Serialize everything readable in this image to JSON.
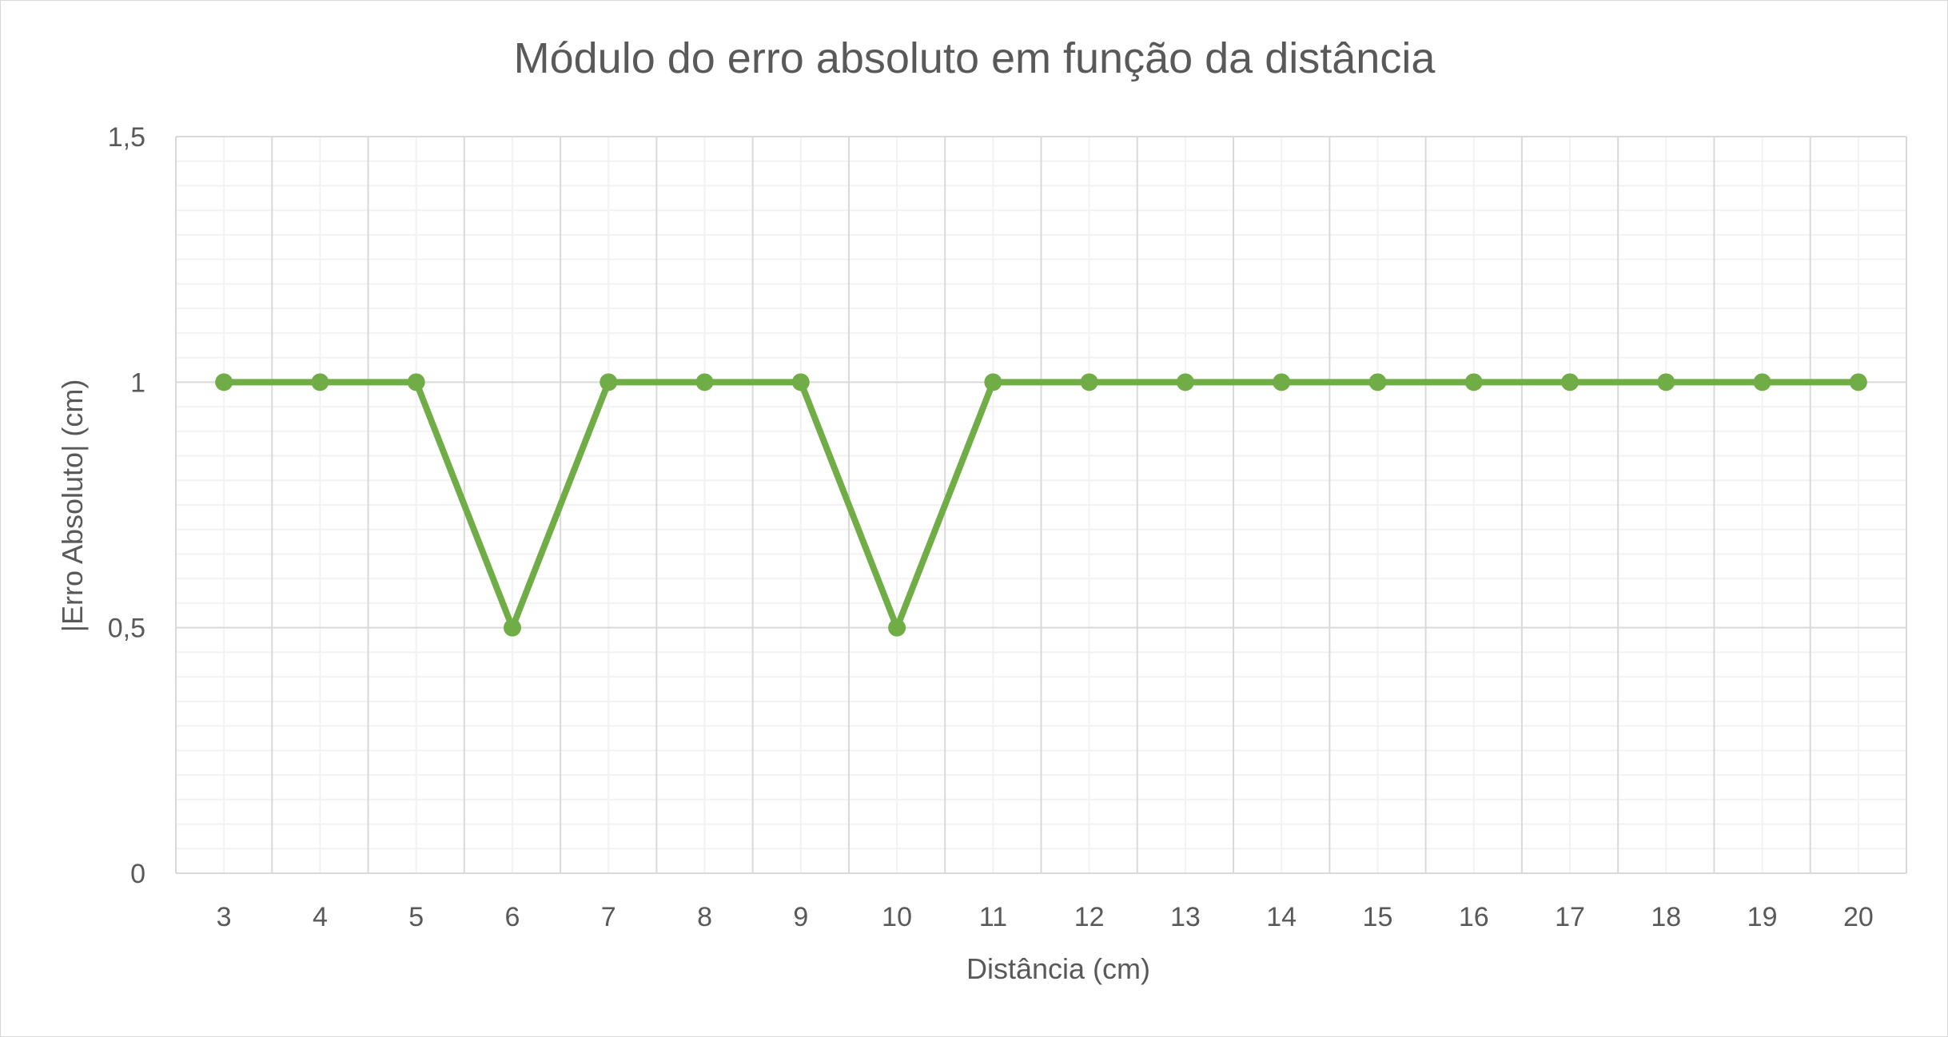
{
  "chart_data": {
    "type": "line",
    "title": "Módulo do erro absoluto em função da distância",
    "xlabel": "Distância (cm)",
    "ylabel": "|Erro Absoluto| (cm)",
    "categories": [
      "3",
      "4",
      "5",
      "6",
      "7",
      "8",
      "9",
      "10",
      "11",
      "12",
      "13",
      "14",
      "15",
      "16",
      "17",
      "18",
      "19",
      "20"
    ],
    "series": [
      {
        "values": [
          1,
          1,
          1,
          0.5,
          1,
          1,
          1,
          0.5,
          1,
          1,
          1,
          1,
          1,
          1,
          1,
          1,
          1,
          1
        ],
        "color": "#70ad47"
      }
    ],
    "ylim": [
      0,
      1.5
    ],
    "y_ticks": [
      "0",
      "0,5",
      "1",
      "1,5"
    ],
    "grid": "major and minor",
    "legend": "none"
  }
}
